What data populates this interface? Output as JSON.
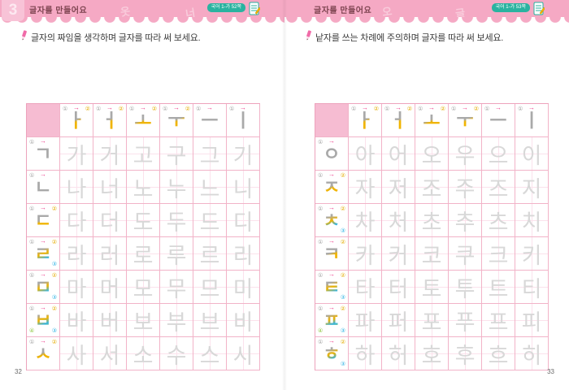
{
  "colors": {
    "band_pink": "#f5a9c4",
    "accent_pink": "#ed3e8c",
    "stroke1_gray": "#a9a9a9",
    "stroke2_yellow": "#f0b400",
    "stroke3_blue": "#35b5e5",
    "stroke4_green": "#8cc63f",
    "badge_teal": "#2ab3a0",
    "title_maroon": "#7d4450",
    "trace_gray": "#d8d8d8",
    "grid_line_pink": "#f2b3c8"
  },
  "vowel_header": [
    {
      "char": "ㅏ",
      "badges": [
        "①",
        "②"
      ]
    },
    {
      "char": "ㅓ",
      "badges": [
        "①",
        "②"
      ]
    },
    {
      "char": "ㅗ",
      "badges": [
        "①",
        "②"
      ]
    },
    {
      "char": "ㅜ",
      "badges": [
        "①",
        "②"
      ]
    },
    {
      "char": "ㅡ",
      "badges": [
        "①"
      ]
    },
    {
      "char": "ㅣ",
      "badges": [
        "①"
      ]
    }
  ],
  "pages": [
    {
      "unit_number": "3",
      "title": "글자를 만들어요",
      "badge": "국어 1-가 52쪽",
      "instruction": "글자의 짜임을 생각하며 글자를 따라 써 보세요.",
      "page_number": "32",
      "band_deco_chars": [
        "옷",
        "너"
      ],
      "rows": [
        {
          "consonant": {
            "char": "ㄱ",
            "badges": [
              "①"
            ]
          },
          "cells": [
            "가",
            "거",
            "고",
            "구",
            "그",
            "기"
          ]
        },
        {
          "consonant": {
            "char": "ㄴ",
            "badges": [
              "①"
            ]
          },
          "cells": [
            "나",
            "너",
            "노",
            "누",
            "느",
            "니"
          ]
        },
        {
          "consonant": {
            "char": "ㄷ",
            "badges": [
              "①",
              "②"
            ]
          },
          "cells": [
            "다",
            "더",
            "도",
            "두",
            "드",
            "디"
          ]
        },
        {
          "consonant": {
            "char": "ㄹ",
            "badges": [
              "①",
              "②",
              "③"
            ]
          },
          "cells": [
            "라",
            "러",
            "로",
            "루",
            "르",
            "리"
          ]
        },
        {
          "consonant": {
            "char": "ㅁ",
            "badges": [
              "①",
              "②",
              "③"
            ]
          },
          "cells": [
            "마",
            "머",
            "모",
            "무",
            "므",
            "미"
          ]
        },
        {
          "consonant": {
            "char": "ㅂ",
            "badges": [
              "①",
              "②",
              "③",
              "④"
            ]
          },
          "cells": [
            "바",
            "버",
            "보",
            "부",
            "브",
            "비"
          ]
        },
        {
          "consonant": {
            "char": "ㅅ",
            "badges": [
              "①",
              "②"
            ]
          },
          "cells": [
            "사",
            "서",
            "소",
            "수",
            "스",
            "시"
          ]
        }
      ]
    },
    {
      "title": "글자를 만들어요",
      "badge": "국어 1-가 53쪽",
      "instruction": "낱자를 쓰는 차례에 주의하며 글자를 따라 써 보세요.",
      "page_number": "33",
      "band_deco_chars": [
        "오",
        "글"
      ],
      "rows": [
        {
          "consonant": {
            "char": "ㅇ",
            "badges": [
              "①"
            ]
          },
          "cells": [
            "아",
            "어",
            "오",
            "우",
            "으",
            "이"
          ]
        },
        {
          "consonant": {
            "char": "ㅈ",
            "badges": [
              "①",
              "②"
            ]
          },
          "cells": [
            "자",
            "저",
            "조",
            "주",
            "즈",
            "지"
          ]
        },
        {
          "consonant": {
            "char": "ㅊ",
            "badges": [
              "①",
              "②",
              "③"
            ]
          },
          "cells": [
            "차",
            "처",
            "초",
            "추",
            "츠",
            "치"
          ]
        },
        {
          "consonant": {
            "char": "ㅋ",
            "badges": [
              "①",
              "②"
            ]
          },
          "cells": [
            "카",
            "커",
            "코",
            "쿠",
            "크",
            "키"
          ]
        },
        {
          "consonant": {
            "char": "ㅌ",
            "badges": [
              "①",
              "②",
              "③"
            ]
          },
          "cells": [
            "타",
            "터",
            "토",
            "투",
            "트",
            "티"
          ]
        },
        {
          "consonant": {
            "char": "ㅍ",
            "badges": [
              "①",
              "②",
              "③",
              "④"
            ]
          },
          "cells": [
            "파",
            "퍼",
            "포",
            "푸",
            "프",
            "피"
          ]
        },
        {
          "consonant": {
            "char": "ㅎ",
            "badges": [
              "①",
              "②",
              "③"
            ]
          },
          "cells": [
            "하",
            "허",
            "호",
            "후",
            "흐",
            "히"
          ]
        }
      ]
    }
  ]
}
